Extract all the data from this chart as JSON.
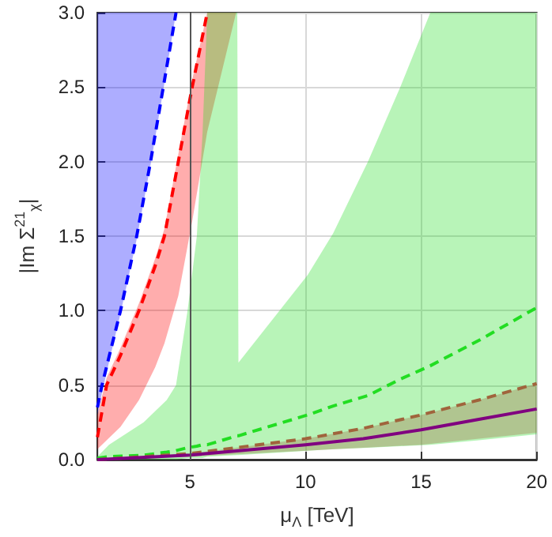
{
  "chart_data": {
    "type": "line",
    "xlabel": "μ$_{Λ}$ [TeV]",
    "ylabel": "|Im Σ$^{21}$$_{χ}$|",
    "xlim": [
      1,
      20
    ],
    "xticks": [
      5,
      10,
      15,
      20
    ],
    "ylim": [
      0,
      3
    ],
    "yticks": [
      {
        "value": 0,
        "label": "0.0"
      },
      {
        "value": 0.5,
        "label": "0.5"
      },
      {
        "value": 1,
        "label": "1.0"
      },
      {
        "value": 1.5,
        "label": "1.5"
      },
      {
        "value": 2,
        "label": "2.0"
      },
      {
        "value": 2.5,
        "label": "2.5"
      },
      {
        "value": 3,
        "label": "3.0"
      }
    ],
    "grid": true,
    "marker": "none",
    "ref_lines": [
      {
        "axis": "x",
        "value": 5,
        "color": "#555555"
      }
    ],
    "series": [
      {
        "color": "#0000ff",
        "line_style": "dashed",
        "x": [
          1,
          1.2,
          1.6,
          2.0,
          2.7,
          3.3,
          3.85,
          4.4
        ],
        "values": [
          0.35,
          0.5,
          0.75,
          1.0,
          1.5,
          2.0,
          2.5,
          3.0
        ],
        "lower": [
          0.3,
          0.45,
          0.72,
          0.98,
          1.48,
          1.98,
          2.48,
          3.0
        ],
        "upper": [
          3,
          3,
          3,
          3,
          3,
          3,
          3,
          3
        ]
      },
      {
        "color": "#ff0000",
        "line_style": "dashed",
        "x": [
          1,
          1.4,
          2,
          2.8,
          3.5,
          3.9,
          4.5,
          5.1,
          5.75,
          7.0
        ],
        "values": [
          0.15,
          0.5,
          0.7,
          1.0,
          1.3,
          1.5,
          2.0,
          2.5,
          3.0,
          null
        ],
        "lower": [
          0.07,
          0.13,
          0.22,
          0.4,
          0.62,
          0.78,
          1.1,
          1.6,
          2.2,
          3.0
        ],
        "upper": [
          0.3,
          0.55,
          0.75,
          1.05,
          1.35,
          1.55,
          2.05,
          2.55,
          3.0,
          3.0
        ]
      },
      {
        "color": "#22dd22",
        "line_style": "dashed",
        "x": [
          1,
          1.5,
          3,
          4,
          4.4,
          4.9,
          5.3,
          5.55,
          5.75,
          7.05,
          7.1,
          10.1,
          11.2,
          12.7,
          14.1,
          15.4,
          17.5,
          20
        ],
        "values": [
          0.01,
          0.02,
          0.03,
          0.05,
          0.06,
          0.08,
          0.09,
          0.1,
          0.1,
          0.16,
          0.16,
          0.3,
          0.36,
          0.43,
          0.54,
          0.63,
          0.8,
          1.02
        ],
        "lower": [
          0,
          0,
          0,
          0,
          0,
          0.01,
          0.01,
          0.01,
          0.02,
          0.03,
          0.03,
          0.06,
          0.07,
          0.08,
          0.09,
          0.1,
          0.13,
          0.17
        ],
        "upper": [
          0.02,
          0.1,
          0.25,
          0.4,
          0.5,
          1.0,
          1.5,
          2.2,
          3.0,
          3.0,
          0.65,
          1.24,
          1.52,
          2.0,
          2.5,
          3.0,
          3.0,
          3.0
        ]
      },
      {
        "color": "#a0643c",
        "line_style": "dashed",
        "x": [
          1,
          5,
          10,
          12.5,
          15,
          17.5,
          20
        ],
        "values": [
          0,
          0.04,
          0.14,
          0.21,
          0.3,
          0.4,
          0.51
        ],
        "lower": [
          0,
          0.02,
          0.06,
          0.08,
          0.1,
          0.14,
          0.18
        ],
        "upper": [
          0,
          0.04,
          0.14,
          0.21,
          0.3,
          0.4,
          0.51
        ]
      },
      {
        "color": "#800080",
        "line_style": "solid",
        "x": [
          1,
          5,
          10,
          12.5,
          15,
          17.5,
          20
        ],
        "values": [
          0,
          0.03,
          0.1,
          0.14,
          0.2,
          0.27,
          0.34
        ]
      }
    ]
  }
}
